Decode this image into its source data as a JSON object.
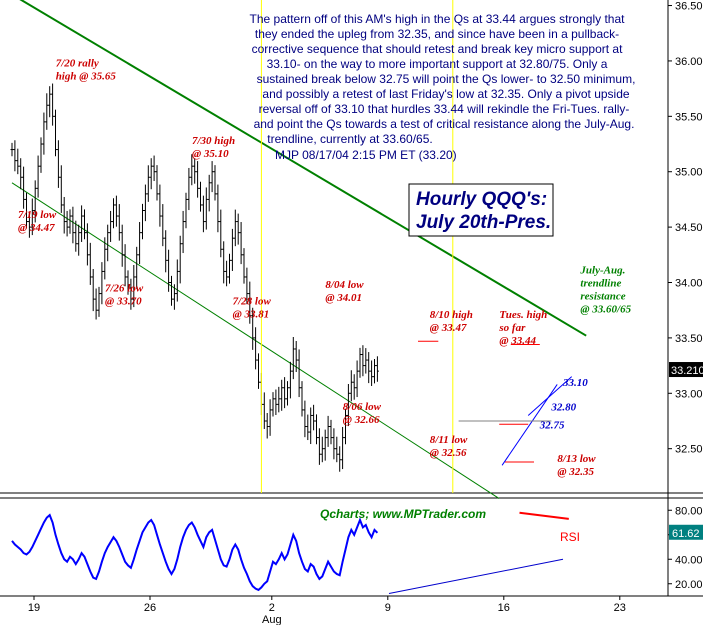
{
  "chart_data": {
    "type": "bar",
    "subtype": "ohlc-hourly",
    "title_lines": [
      "Hourly QQQ's:",
      "July 20th-Pres."
    ],
    "byline": "MJP 08/17/04  2:15 PM ET (33.20)",
    "website": "Qcharts; www.MPTrader.com",
    "commentary_lines": [
      "The pattern off of this AM's high in the Qs at 33.44 argues strongly that",
      "they ended the upleg from 32.35, and since have been in a pullback-",
      "corrective sequence that should retest and break key micro support at",
      "33.10- on the way to more important support at 32.80/75. Only a",
      "sustained break below 32.75 will point the Qs lower- to 32.50 minimum,",
      "and possibly a retest of last Friday's low at 32.35. Only a pivot upside",
      "reversal off of 33.10 that hurdles 33.44 will rekindle the Fri-Tues. rally-",
      "and point the Qs towards a test of critical resistance along the July-Aug.",
      "trendline, currently at 33.60/65."
    ],
    "price_axis": {
      "ylim": [
        32.1,
        36.55
      ],
      "ticks": [
        "36.5000",
        "36.0000",
        "35.5000",
        "35.0000",
        "34.5000",
        "34.0000",
        "33.5000",
        "33.0000",
        "32.5000"
      ],
      "tick_values": [
        36.5,
        36.0,
        35.5,
        35.0,
        34.5,
        34.0,
        33.5,
        33.0,
        32.5
      ],
      "last_price_label": "33.2100",
      "last_price": 33.21
    },
    "x_axis": {
      "tick_labels": [
        "19",
        "26",
        "2",
        "9",
        "16",
        "23"
      ],
      "tick_bar_index": [
        0,
        40,
        82,
        122,
        162,
        202
      ],
      "month_label": "Aug",
      "month_bar_index": 82
    },
    "closes": [
      35.2,
      35.1,
      35.05,
      34.95,
      34.75,
      34.55,
      34.5,
      34.65,
      34.85,
      35.05,
      35.25,
      35.45,
      35.6,
      35.7,
      35.5,
      35.2,
      34.95,
      34.7,
      34.55,
      34.5,
      34.6,
      34.45,
      34.35,
      34.45,
      34.6,
      34.45,
      34.25,
      34.05,
      33.85,
      33.75,
      33.9,
      34.1,
      34.3,
      34.45,
      34.55,
      34.7,
      34.6,
      34.45,
      34.25,
      34.05,
      33.95,
      33.85,
      34.05,
      34.25,
      34.45,
      34.65,
      34.8,
      34.95,
      35.05,
      35.0,
      34.8,
      34.6,
      34.4,
      34.2,
      34.0,
      33.85,
      33.9,
      34.1,
      34.35,
      34.55,
      34.75,
      34.95,
      35.05,
      35.0,
      34.85,
      34.7,
      34.55,
      34.75,
      34.9,
      35.0,
      34.8,
      34.55,
      34.3,
      34.1,
      34.05,
      34.2,
      34.4,
      34.55,
      34.45,
      34.25,
      34.05,
      33.9,
      33.7,
      33.5,
      33.3,
      33.1,
      32.9,
      32.75,
      32.7,
      32.85,
      32.95,
      32.9,
      32.95,
      33.05,
      32.95,
      33.05,
      33.2,
      33.4,
      33.3,
      33.05,
      32.85,
      32.7,
      32.65,
      32.8,
      32.75,
      32.6,
      32.45,
      32.5,
      32.6,
      32.7,
      32.6,
      32.5,
      32.45,
      32.4,
      32.6,
      32.8,
      33.0,
      33.1,
      33.05,
      33.2,
      33.35,
      33.25,
      33.3,
      33.2,
      33.15,
      33.25,
      33.2
    ],
    "rsi": {
      "label": "RSI",
      "ylim": [
        10,
        90
      ],
      "ticks": [
        "80.00",
        "60.00",
        "40.00",
        "20.00"
      ],
      "tick_values": [
        80,
        60,
        40,
        20
      ],
      "last_value_label": "61.62",
      "last_value": 61.62,
      "values": [
        55,
        52,
        50,
        48,
        45,
        44,
        46,
        50,
        55,
        60,
        65,
        70,
        74,
        76,
        70,
        60,
        52,
        45,
        40,
        38,
        42,
        40,
        36,
        40,
        45,
        42,
        36,
        30,
        25,
        24,
        30,
        38,
        45,
        50,
        54,
        58,
        55,
        50,
        44,
        38,
        35,
        33,
        40,
        48,
        55,
        62,
        66,
        70,
        72,
        68,
        60,
        52,
        45,
        38,
        32,
        28,
        32,
        40,
        50,
        58,
        64,
        68,
        70,
        66,
        60,
        55,
        50,
        58,
        62,
        64,
        56,
        48,
        40,
        35,
        34,
        40,
        48,
        52,
        48,
        40,
        33,
        28,
        22,
        18,
        16,
        15,
        17,
        20,
        22,
        30,
        38,
        36,
        40,
        45,
        40,
        44,
        52,
        60,
        55,
        45,
        38,
        32,
        30,
        36,
        34,
        28,
        24,
        26,
        32,
        38,
        34,
        30,
        28,
        27,
        38,
        48,
        58,
        64,
        60,
        66,
        72,
        66,
        68,
        62,
        58,
        64,
        61.62
      ]
    },
    "annotations": [
      {
        "lines": [
          "7/20 rally",
          "high @ 35.65"
        ],
        "bar": 13,
        "price": 35.95,
        "color": "red"
      },
      {
        "lines": [
          "7/19 low",
          "@ 34.47"
        ],
        "bar": 0,
        "price": 34.58,
        "color": "red"
      },
      {
        "lines": [
          "7/26  low",
          "@ 33.70"
        ],
        "bar": 30,
        "price": 33.92,
        "color": "red"
      },
      {
        "lines": [
          "7/30 high",
          "@ 35.10"
        ],
        "bar": 60,
        "price": 35.25,
        "color": "red"
      },
      {
        "lines": [
          "7/28 low",
          "@ 33.81"
        ],
        "bar": 74,
        "price": 33.8,
        "color": "red"
      },
      {
        "lines": [
          "8/04 low",
          "@ 34.01"
        ],
        "bar": 106,
        "price": 33.95,
        "color": "red"
      },
      {
        "lines": [
          "8/06 low",
          "@ 32.66"
        ],
        "bar": 112,
        "price": 32.85,
        "color": "red"
      },
      {
        "lines": [
          "8/10 high",
          "@ 33.47"
        ],
        "bar": 142,
        "price": 33.68,
        "color": "red"
      },
      {
        "lines": [
          "8/11 low",
          "@ 32.56"
        ],
        "bar": 142,
        "price": 32.55,
        "color": "red"
      },
      {
        "lines": [
          "Tues. high",
          "so far",
          "@ 33.44"
        ],
        "bar": 166,
        "price": 33.68,
        "color": "red"
      },
      {
        "lines": [
          "8/13 low",
          "@ 32.35"
        ],
        "bar": 186,
        "price": 32.38,
        "color": "red"
      },
      {
        "lines": [
          "July-Aug.",
          "trendline",
          "resistance",
          "@ 33.60/65"
        ],
        "bar": 196,
        "price": 34.08,
        "color": "green"
      }
    ],
    "levels": [
      "33.10",
      "32.80",
      "32.75"
    ],
    "trendlines": [
      {
        "name": "upper",
        "bar1": 0,
        "price1": 36.6,
        "bar2": 198,
        "price2": 33.52,
        "color": "green"
      },
      {
        "name": "lower",
        "bar1": 0,
        "price1": 34.9,
        "bar2": 168,
        "price2": 32.05,
        "color": "green"
      }
    ],
    "grid": false,
    "colors": {
      "bars": "#000000",
      "rsi_line": "#0000ff",
      "trend": "#008000",
      "annotation": "#cc0000",
      "level": "#0000cc",
      "price_label_bg": "#000000",
      "rsi_label_bg": "#008080",
      "vertical_marker": "#ffff00",
      "resistance_marker": "#ff0000"
    }
  }
}
